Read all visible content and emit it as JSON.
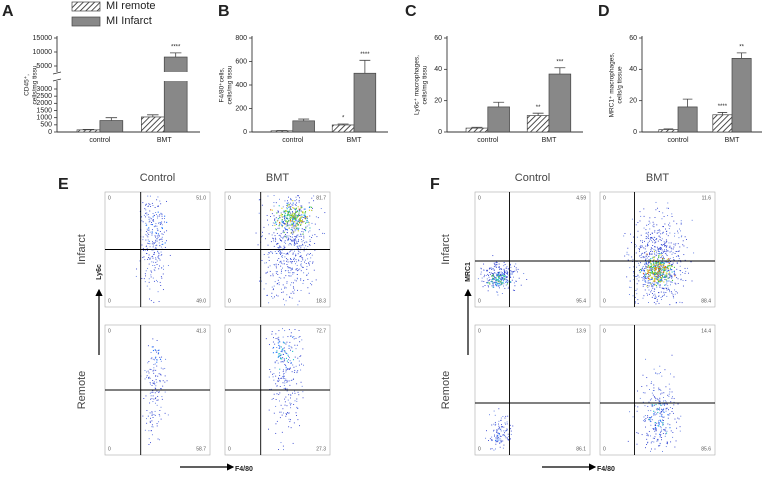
{
  "chart_data": [
    {
      "type": "bar",
      "panel": "A",
      "y_label": [
        "CD45⁺,",
        "cells/mg tissu"
      ],
      "categories": [
        "control",
        "BMT"
      ],
      "ylim": [
        0,
        15000
      ],
      "axis_break": [
        3000,
        5000
      ],
      "yticks": [
        0,
        500,
        1000,
        1500,
        2000,
        2500,
        3000,
        5000,
        10000,
        15000
      ],
      "series": [
        {
          "name": "MI remote",
          "pattern": "hatch",
          "color": "#ffffff",
          "values": [
            150,
            1050
          ],
          "errors": [
            30,
            150
          ],
          "sig_labels": [
            null,
            null
          ]
        },
        {
          "name": "MI Infarct",
          "pattern": "solid",
          "color": "#888888",
          "values": [
            800,
            8200
          ],
          "errors": [
            200,
            1500
          ],
          "sig_labels": [
            null,
            "****"
          ]
        }
      ]
    },
    {
      "type": "bar",
      "panel": "B",
      "y_label": [
        "F4/80⁺cells,",
        "cells/mg tissu"
      ],
      "categories": [
        "control",
        "BMT"
      ],
      "ylim": [
        0,
        800
      ],
      "yticks": [
        0,
        200,
        400,
        600,
        800
      ],
      "series": [
        {
          "pattern": "hatch",
          "color": "#ffffff",
          "values": [
            10,
            60
          ],
          "errors": [
            3,
            8
          ],
          "sig_labels": [
            null,
            "*"
          ]
        },
        {
          "pattern": "solid",
          "color": "#888888",
          "values": [
            95,
            500
          ],
          "errors": [
            15,
            110
          ],
          "sig_labels": [
            null,
            "****"
          ]
        }
      ]
    },
    {
      "type": "bar",
      "panel": "C",
      "y_label": [
        "Ly6c⁺ macrophages,",
        "cells/mg tissu"
      ],
      "categories": [
        "control",
        "BMT"
      ],
      "ylim": [
        0,
        60
      ],
      "yticks": [
        0,
        20,
        40,
        60
      ],
      "series": [
        {
          "pattern": "hatch",
          "color": "#ffffff",
          "values": [
            2.5,
            10.5
          ],
          "errors": [
            0.5,
            1.5
          ],
          "sig_labels": [
            null,
            "**"
          ]
        },
        {
          "pattern": "solid",
          "color": "#888888",
          "values": [
            16,
            37
          ],
          "errors": [
            3,
            4
          ],
          "sig_labels": [
            null,
            "***"
          ]
        }
      ]
    },
    {
      "type": "bar",
      "panel": "D",
      "y_label": [
        "MRC1⁺ macrophages,",
        "cells/g tissue"
      ],
      "categories": [
        "control",
        "BMT"
      ],
      "ylim": [
        0,
        60
      ],
      "yticks": [
        0,
        20,
        40,
        60
      ],
      "series": [
        {
          "pattern": "hatch",
          "color": "#ffffff",
          "values": [
            1.5,
            11
          ],
          "errors": [
            0.5,
            1.5
          ],
          "sig_labels": [
            null,
            "****"
          ]
        },
        {
          "pattern": "solid",
          "color": "#888888",
          "values": [
            16,
            47
          ],
          "errors": [
            5,
            3.5
          ],
          "sig_labels": [
            null,
            "**"
          ]
        }
      ]
    }
  ],
  "flow_panels": [
    {
      "panel": "E",
      "columns": [
        "Control",
        "BMT"
      ],
      "rows": [
        "Infarct",
        "Remote"
      ],
      "y_label": "Ly6c",
      "x_label": "F4/80",
      "plots": [
        [
          {
            "upper_left": "0",
            "upper_right": "51.0",
            "lower_left": "0",
            "lower_right": "49.0"
          },
          {
            "upper_left": "0",
            "upper_right": "81.7",
            "lower_left": "0",
            "lower_right": "18.3"
          }
        ],
        [
          {
            "upper_left": "0",
            "upper_right": "41.3",
            "lower_left": "0",
            "lower_right": "58.7"
          },
          {
            "upper_left": "0",
            "upper_right": "72.7",
            "lower_left": "0",
            "lower_right": "27.3"
          }
        ]
      ]
    },
    {
      "panel": "F",
      "columns": [
        "Control",
        "BMT"
      ],
      "rows": [
        "Infarct",
        "Remote"
      ],
      "y_label": "MRC1",
      "x_label": "F4/80",
      "plots": [
        [
          {
            "upper_left": "0",
            "upper_right": "4.59",
            "lower_left": "0",
            "lower_right": "95.4"
          },
          {
            "upper_left": "0",
            "upper_right": "11.6",
            "lower_left": "0",
            "lower_right": "88.4"
          }
        ],
        [
          {
            "upper_left": "0",
            "upper_right": "13.9",
            "lower_left": "0",
            "lower_right": "86.1"
          },
          {
            "upper_left": "0",
            "upper_right": "14.4",
            "lower_left": "0",
            "lower_right": "85.6"
          }
        ]
      ]
    }
  ]
}
